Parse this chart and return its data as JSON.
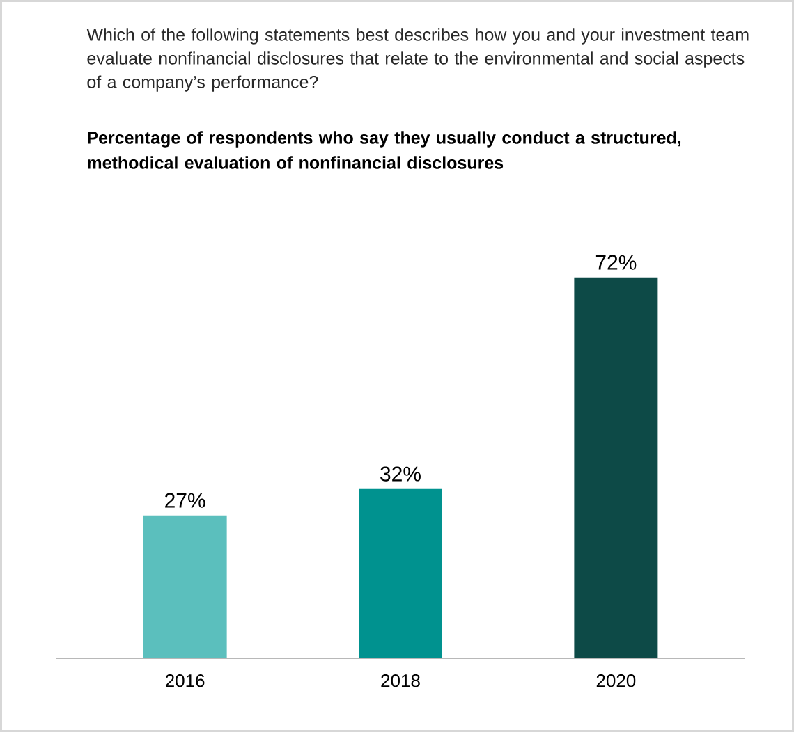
{
  "chart_data": {
    "type": "bar",
    "title": "Which of the following statements best describes how you and your investment team evaluate nonfinancial disclosures that relate to the environmental and social aspects of a company’s performance?",
    "subtitle": "Percentage of respondents who say they usually conduct a structured, methodical evaluation of nonfinancial disclosures",
    "categories": [
      "2016",
      "2018",
      "2020"
    ],
    "values": [
      27,
      32,
      72
    ],
    "colors": [
      "#5bbfbd",
      "#00928f",
      "#0d4a47"
    ],
    "value_labels": [
      "27%",
      "32%",
      "72%"
    ]
  }
}
